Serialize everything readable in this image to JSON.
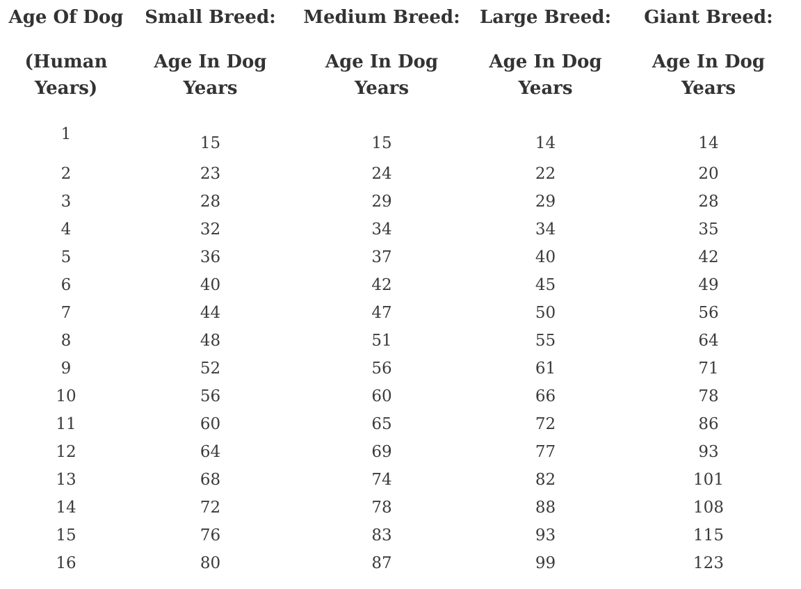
{
  "page": {
    "background": "#ffffff",
    "text_color": "#343434"
  },
  "chart_data": {
    "type": "table",
    "columns": [
      {
        "title": "Age Of Dog",
        "subtitle": "(Human\nYears)"
      },
      {
        "title": "Small Breed:",
        "subtitle": "Age In Dog\nYears"
      },
      {
        "title": "Medium Breed:",
        "subtitle": "Age In Dog\nYears"
      },
      {
        "title": "Large Breed:",
        "subtitle": "Age In Dog\nYears"
      },
      {
        "title": "Giant Breed:",
        "subtitle": "Age In Dog\nYears"
      }
    ],
    "rows": [
      [
        1,
        15,
        15,
        14,
        14
      ],
      [
        2,
        23,
        24,
        22,
        20
      ],
      [
        3,
        28,
        29,
        29,
        28
      ],
      [
        4,
        32,
        34,
        34,
        35
      ],
      [
        5,
        36,
        37,
        40,
        42
      ],
      [
        6,
        40,
        42,
        45,
        49
      ],
      [
        7,
        44,
        47,
        50,
        56
      ],
      [
        8,
        48,
        51,
        55,
        64
      ],
      [
        9,
        52,
        56,
        61,
        71
      ],
      [
        10,
        56,
        60,
        66,
        78
      ],
      [
        11,
        60,
        65,
        72,
        86
      ],
      [
        12,
        64,
        69,
        77,
        93
      ],
      [
        13,
        68,
        74,
        82,
        101
      ],
      [
        14,
        72,
        78,
        88,
        108
      ],
      [
        15,
        76,
        83,
        93,
        115
      ],
      [
        16,
        80,
        87,
        99,
        123
      ]
    ]
  }
}
